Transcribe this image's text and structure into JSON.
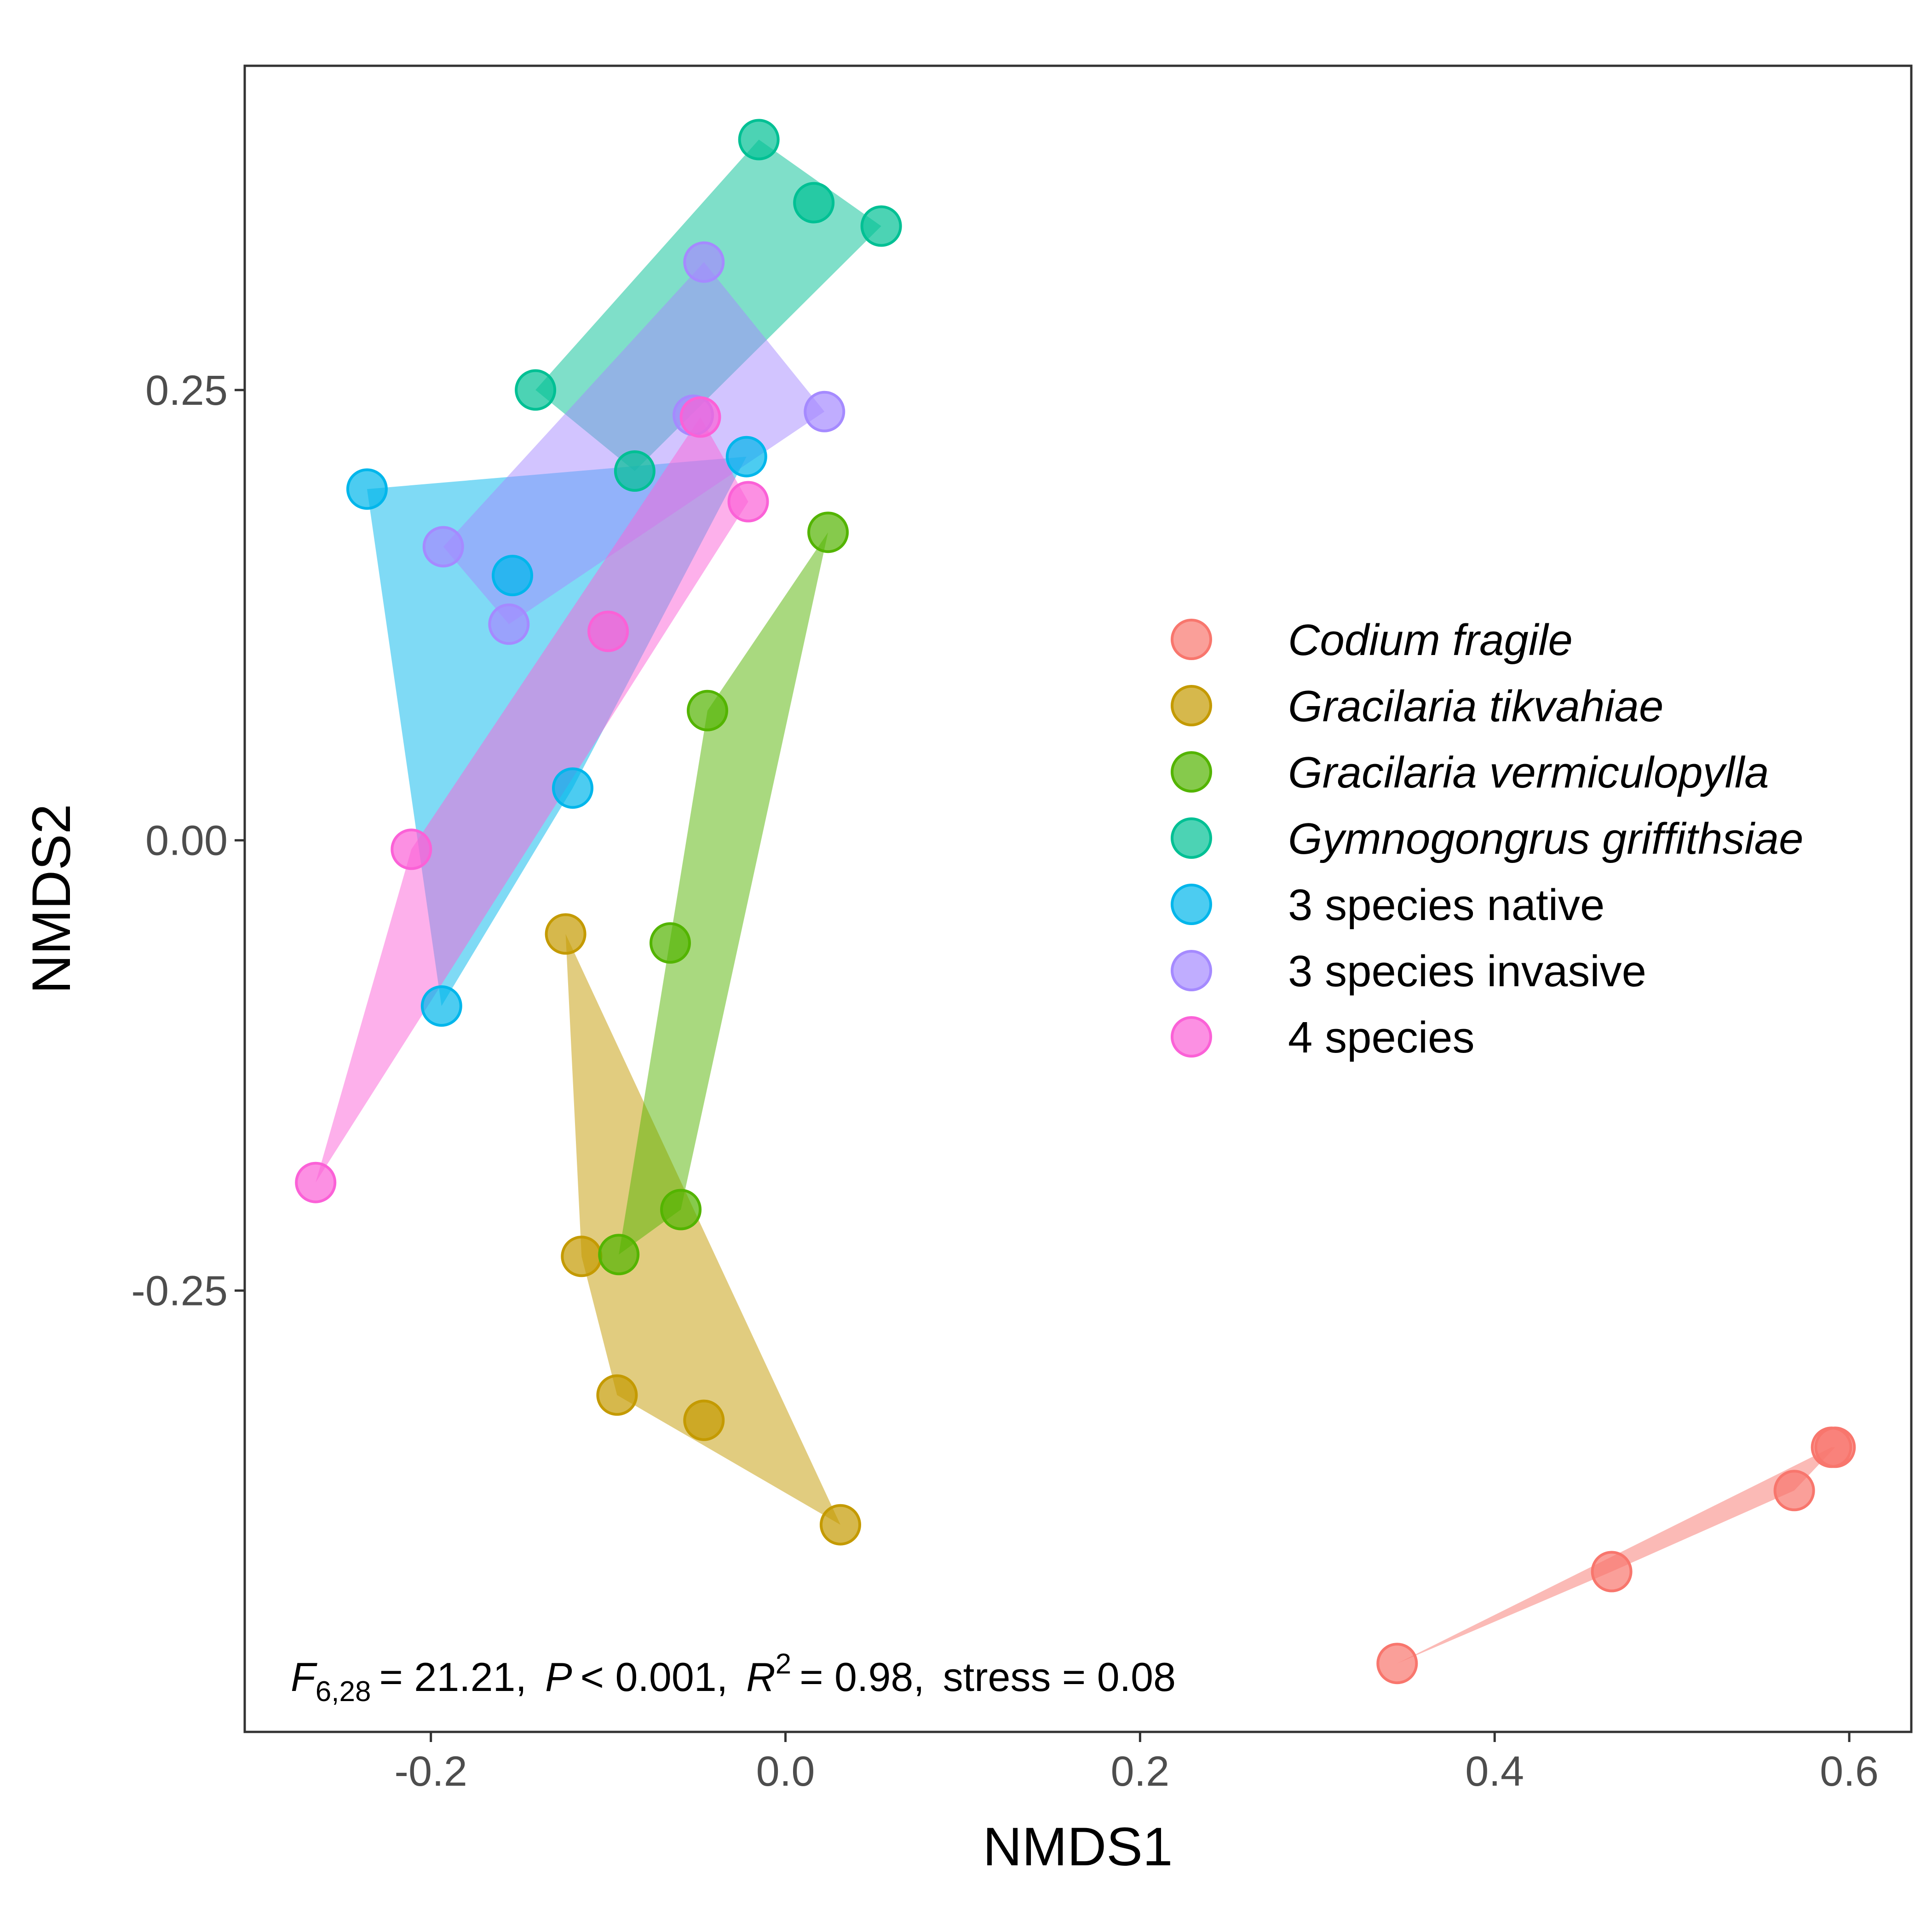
{
  "chart_data": {
    "type": "scatter",
    "xlabel": "NMDS1",
    "ylabel": "NMDS2",
    "xlim": [
      -0.305,
      0.635
    ],
    "ylim": [
      -0.495,
      0.43
    ],
    "xticks": [
      -0.2,
      0.0,
      0.2,
      0.4,
      0.6
    ],
    "xtick_labels": [
      "-0.2",
      "0.0",
      "0.2",
      "0.4",
      "0.6"
    ],
    "yticks": [
      -0.25,
      0.0,
      0.25
    ],
    "ytick_labels": [
      "-0.25",
      "0.00",
      "0.25"
    ],
    "grid": false,
    "legend_position": "right",
    "annotation": {
      "f_symbol": "F",
      "f_df": "6,28",
      "f_value": "= 21.21,",
      "p_symbol": "P",
      "p_value": "< 0.001,",
      "r_symbol": "R",
      "r_exp": "2",
      "r_value": "= 0.98,",
      "stress": "stress = 0.08"
    },
    "series": [
      {
        "name": "Codium fragile",
        "italic": true,
        "color": "#F8766D",
        "points": [
          [
            0.345,
            -0.457
          ],
          [
            0.466,
            -0.406
          ],
          [
            0.569,
            -0.361
          ],
          [
            0.59,
            -0.337
          ],
          [
            0.592,
            -0.337
          ]
        ]
      },
      {
        "name": "Gracilaria tikvahiae",
        "italic": true,
        "color": "#C49A00",
        "points": [
          [
            -0.124,
            -0.052
          ],
          [
            -0.115,
            -0.231
          ],
          [
            -0.095,
            -0.308
          ],
          [
            -0.046,
            -0.322
          ],
          [
            0.031,
            -0.38
          ]
        ]
      },
      {
        "name": "Gracilaria vermiculopylla",
        "italic": true,
        "color": "#53B400",
        "points": [
          [
            0.024,
            0.171
          ],
          [
            -0.044,
            0.072
          ],
          [
            -0.065,
            -0.057
          ],
          [
            -0.059,
            -0.205
          ],
          [
            -0.094,
            -0.23
          ]
        ]
      },
      {
        "name": "Gymnogongrus griffithsiae",
        "italic": true,
        "color": "#00C094",
        "points": [
          [
            -0.015,
            0.389
          ],
          [
            0.016,
            0.354
          ],
          [
            0.054,
            0.341
          ],
          [
            -0.141,
            0.25
          ],
          [
            -0.085,
            0.205
          ]
        ]
      },
      {
        "name": "3 species native",
        "italic": false,
        "color": "#00B6EB",
        "points": [
          [
            -0.236,
            0.195
          ],
          [
            -0.154,
            0.147
          ],
          [
            -0.12,
            0.029
          ],
          [
            -0.194,
            -0.092
          ],
          [
            -0.022,
            0.213
          ]
        ]
      },
      {
        "name": "3 species invasive",
        "italic": false,
        "color": "#A58AFF",
        "points": [
          [
            -0.046,
            0.321
          ],
          [
            0.022,
            0.238
          ],
          [
            -0.052,
            0.236
          ],
          [
            -0.193,
            0.163
          ],
          [
            -0.156,
            0.12
          ]
        ]
      },
      {
        "name": "4 species",
        "italic": false,
        "color": "#FB61D7",
        "points": [
          [
            -0.048,
            0.235
          ],
          [
            -0.021,
            0.188
          ],
          [
            -0.1,
            0.116
          ],
          [
            -0.211,
            -0.005
          ],
          [
            -0.265,
            -0.19
          ]
        ]
      }
    ]
  }
}
